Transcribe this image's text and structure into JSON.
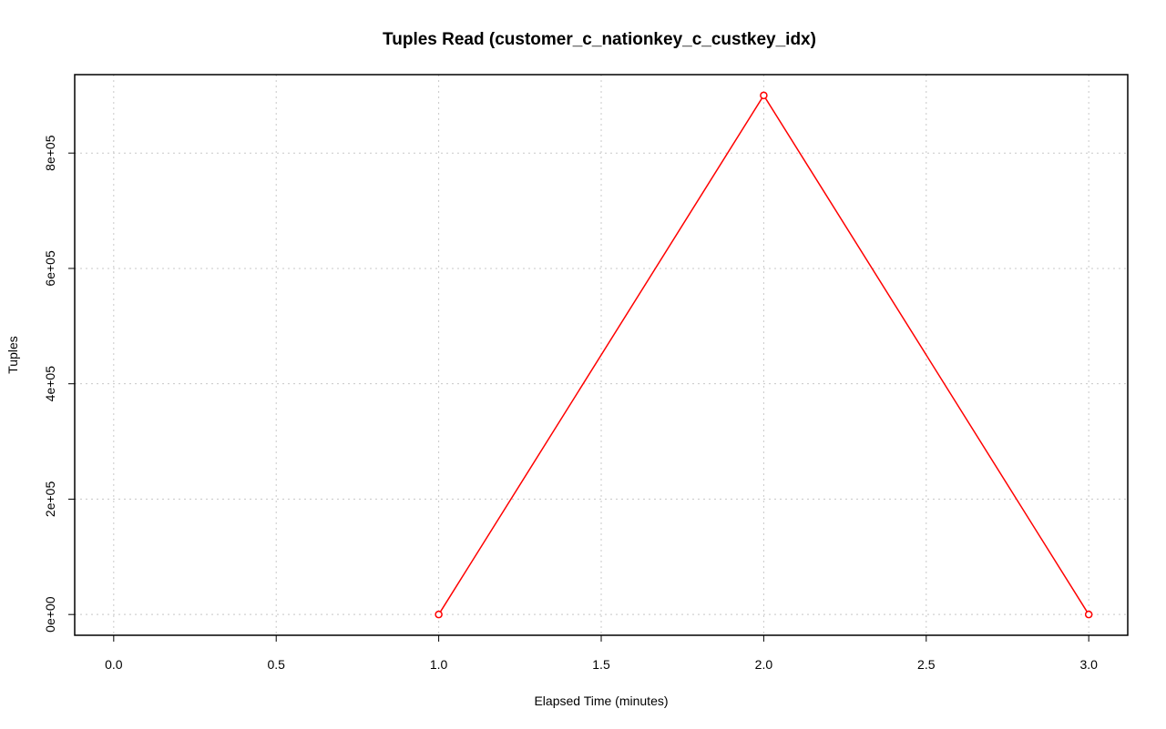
{
  "chart_data": {
    "type": "line",
    "title": "Tuples Read (customer_c_nationkey_c_custkey_idx)",
    "x_label": "Elapsed Time (minutes)",
    "y_label": "Tuples",
    "x": [
      1,
      2,
      3
    ],
    "series": [
      {
        "color": "#ff0000",
        "values": [
          0,
          900000,
          0
        ]
      }
    ],
    "xlim": [
      -0.12,
      3.12
    ],
    "ylim": [
      -36000,
      936000
    ],
    "xticks": [
      {
        "value": 0,
        "label": "0.0"
      },
      0.5,
      {
        "value": 1,
        "label": "1.0"
      },
      1.5,
      {
        "value": 2,
        "label": "2.0"
      },
      2.5,
      {
        "value": 3,
        "label": "3.0"
      }
    ],
    "yticks": [
      {
        "value": 0,
        "label": "0e+00"
      },
      {
        "value": 200000,
        "label": "2e+05"
      },
      {
        "value": 400000,
        "label": "4e+05"
      },
      {
        "value": 600000,
        "label": "6e+05"
      },
      {
        "value": 800000,
        "label": "8e+05"
      }
    ],
    "grid": true
  }
}
